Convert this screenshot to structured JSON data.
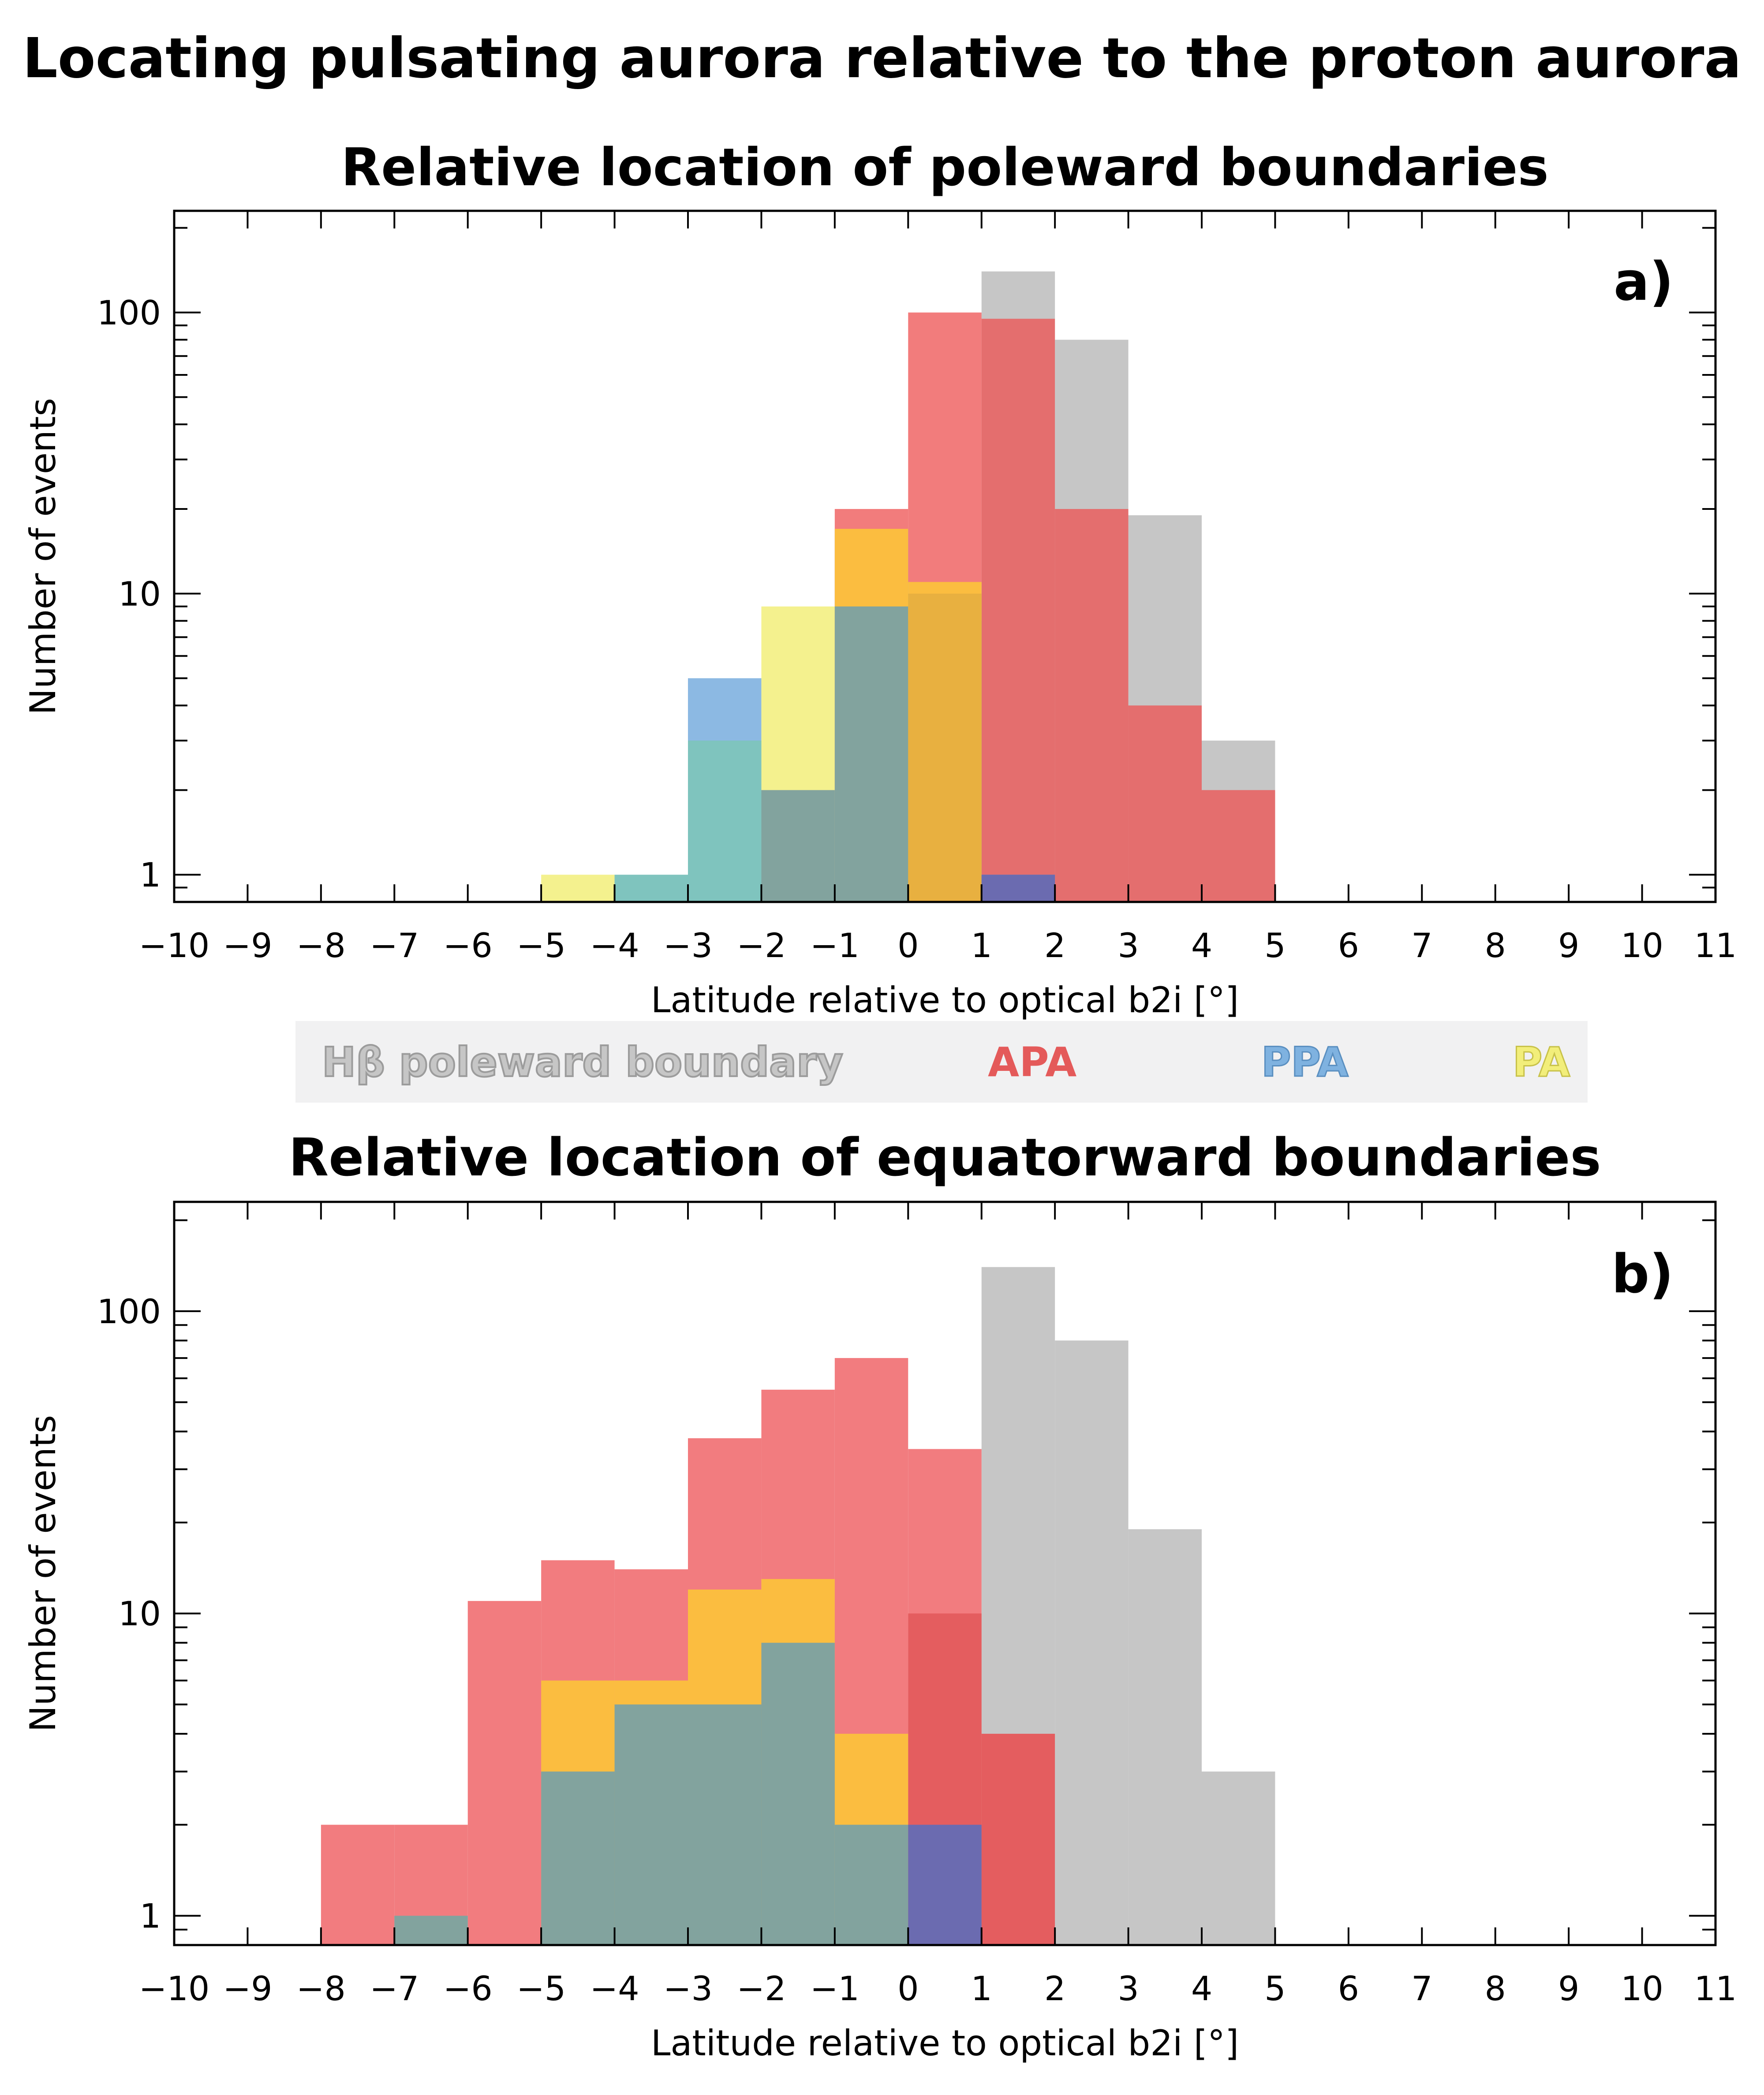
{
  "figure": {
    "title": "Locating pulsating aurora relative to the proton aurora",
    "legend": [
      {
        "label": "Hβ poleward boundary",
        "color": "#c6c6c6",
        "stroke": "#9c9c9c"
      },
      {
        "label": "APA",
        "color": "#e45a5a",
        "stroke": "#e45a5a"
      },
      {
        "label": "PPA",
        "color": "#7fb2e0",
        "stroke": "#5a8fc0"
      },
      {
        "label": "PA",
        "color": "#f2ee7a",
        "stroke": "#c8c24a"
      }
    ]
  },
  "chart_data": [
    {
      "type": "bar",
      "panel": "a)",
      "title": "Relative location of poleward boundaries",
      "xlabel": "Latitude relative to optical b2i [°]",
      "ylabel": "Number of events",
      "xlim": [
        -10,
        11
      ],
      "ylim": [
        0.8,
        230
      ],
      "yscale": "log",
      "xticks": [
        -10,
        -9,
        -8,
        -7,
        -6,
        -5,
        -4,
        -3,
        -2,
        -1,
        0,
        1,
        2,
        3,
        4,
        5,
        6,
        7,
        8,
        9,
        10,
        11
      ],
      "yticks": [
        1,
        10,
        100
      ],
      "bin_width": 1,
      "layers": [
        {
          "name": "Hβ poleward boundary",
          "color": "#c6c6c6",
          "opacity": 1.0,
          "bins": [
            [
              1,
              140
            ],
            [
              2,
              80
            ],
            [
              3,
              19
            ],
            [
              4,
              3
            ]
          ]
        },
        {
          "name": "APA",
          "color": "#ee5050",
          "opacity": 0.75,
          "bins": [
            [
              -1,
              20
            ],
            [
              0,
              100
            ],
            [
              1,
              95
            ],
            [
              2,
              20
            ],
            [
              3,
              4
            ],
            [
              4,
              2
            ]
          ]
        },
        {
          "name": "PPA",
          "color": "#6fa8dc",
          "opacity": 0.8,
          "bins": [
            [
              -3,
              5
            ],
            [
              -1,
              17
            ],
            [
              0,
              11
            ],
            [
              1,
              1
            ]
          ]
        },
        {
          "name": "PA",
          "color": "#f2ee7a",
          "opacity": 0.85,
          "bins": [
            [
              -5,
              1
            ],
            [
              -2,
              9
            ],
            [
              0,
              11
            ]
          ]
        },
        {
          "name": "overlap-orange",
          "color": "#fbbd40",
          "opacity": 1.0,
          "bins": [
            [
              -1,
              17
            ],
            [
              0,
              11
            ]
          ]
        },
        {
          "name": "overlap-teal",
          "color": "#7fc4be",
          "opacity": 1.0,
          "bins": [
            [
              -4,
              1
            ],
            [
              -3,
              3
            ]
          ]
        },
        {
          "name": "overlap-gray-teal",
          "color": "#82a39e",
          "opacity": 1.0,
          "bins": [
            [
              -2,
              2
            ],
            [
              -1,
              9
            ],
            [
              0,
              8
            ]
          ]
        },
        {
          "name": "overlap-dark-orange",
          "color": "#e8b040",
          "opacity": 1.0,
          "bins": [
            [
              0,
              10
            ]
          ]
        },
        {
          "name": "overlap-purple",
          "color": "#6b6bb0",
          "opacity": 1.0,
          "bins": [
            [
              1,
              1
            ]
          ]
        }
      ]
    },
    {
      "type": "bar",
      "panel": "b)",
      "title": "Relative location of equatorward boundaries",
      "xlabel": "Latitude relative to optical b2i [°]",
      "ylabel": "Number of events",
      "xlim": [
        -10,
        11
      ],
      "ylim": [
        0.8,
        230
      ],
      "yscale": "log",
      "xticks": [
        -10,
        -9,
        -8,
        -7,
        -6,
        -5,
        -4,
        -3,
        -2,
        -1,
        0,
        1,
        2,
        3,
        4,
        5,
        6,
        7,
        8,
        9,
        10,
        11
      ],
      "yticks": [
        1,
        10,
        100
      ],
      "bin_width": 1,
      "layers": [
        {
          "name": "Hβ poleward boundary",
          "color": "#c6c6c6",
          "opacity": 1.0,
          "bins": [
            [
              1,
              140
            ],
            [
              2,
              80
            ],
            [
              3,
              19
            ],
            [
              4,
              3
            ]
          ]
        },
        {
          "name": "APA",
          "color": "#f27c7f",
          "opacity": 1.0,
          "bins": [
            [
              -8,
              2
            ],
            [
              -7,
              2
            ],
            [
              -6,
              11
            ],
            [
              -5,
              15
            ],
            [
              -4,
              14
            ],
            [
              -3,
              38
            ],
            [
              -2,
              55
            ],
            [
              -1,
              70
            ],
            [
              0,
              35
            ]
          ]
        },
        {
          "name": "APA-dark",
          "color": "#e45d5f",
          "opacity": 1.0,
          "bins": [
            [
              0,
              10
            ],
            [
              1,
              4
            ]
          ]
        },
        {
          "name": "overlap-orange",
          "color": "#fbbd40",
          "opacity": 1.0,
          "bins": [
            [
              -5,
              6
            ],
            [
              -4,
              6
            ],
            [
              -3,
              12
            ],
            [
              -2,
              13
            ],
            [
              -1,
              4
            ]
          ]
        },
        {
          "name": "overlap-gray-teal",
          "color": "#82a39e",
          "opacity": 1.0,
          "bins": [
            [
              -7,
              1
            ],
            [
              -5,
              3
            ],
            [
              -4,
              5
            ],
            [
              -3,
              5
            ],
            [
              -2,
              8
            ],
            [
              -1,
              2
            ]
          ]
        },
        {
          "name": "overlap-purple",
          "color": "#6b6bb0",
          "opacity": 1.0,
          "bins": [
            [
              0,
              2
            ]
          ]
        }
      ]
    }
  ]
}
